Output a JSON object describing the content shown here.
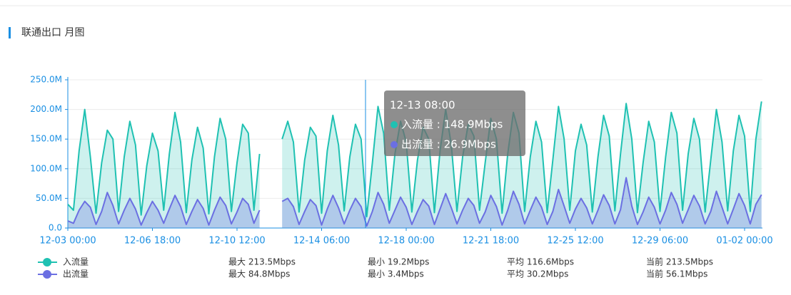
{
  "chart_data": {
    "type": "area",
    "title": "联通出口 月图",
    "categories": [
      "12-03 00:00",
      null,
      null,
      null,
      null,
      null,
      null,
      null,
      null,
      null,
      null,
      null,
      null,
      null,
      null,
      "12-06 18:00",
      null,
      null,
      null,
      null,
      null,
      null,
      null,
      null,
      null,
      null,
      null,
      null,
      null,
      null,
      "12-10 12:00",
      null,
      null,
      null,
      null,
      null,
      null,
      null,
      null,
      null,
      null,
      null,
      null,
      null,
      null,
      "12-14 06:00",
      null,
      null,
      null,
      null,
      null,
      null,
      null,
      null,
      null,
      null,
      null,
      null,
      null,
      null,
      "12-18 00:00",
      null,
      null,
      null,
      null,
      null,
      null,
      null,
      null,
      null,
      null,
      null,
      null,
      null,
      null,
      "12-21 18:00",
      null,
      null,
      null,
      null,
      null,
      null,
      null,
      null,
      null,
      null,
      null,
      null,
      null,
      null,
      "12-25 12:00",
      null,
      null,
      null,
      null,
      null,
      null,
      null,
      null,
      null,
      null,
      null,
      null,
      null,
      null,
      "12-29 06:00",
      null,
      null,
      null,
      null,
      null,
      null,
      null,
      null,
      null,
      null,
      null,
      null,
      null,
      null,
      "01-02 00:00",
      null,
      null,
      null
    ],
    "series": [
      {
        "name": "入流量",
        "color": "#1fc1b2",
        "fill": "rgba(31,193,178,0.22)",
        "stats": [
          "最大 213.5Mbps",
          "最小 19.2Mbps",
          "平均 116.6Mbps",
          "当前 213.5Mbps"
        ],
        "values": [
          40,
          30,
          130,
          200,
          120,
          25,
          110,
          165,
          150,
          28,
          120,
          180,
          140,
          22,
          105,
          160,
          130,
          30,
          125,
          195,
          145,
          26,
          115,
          170,
          135,
          24,
          120,
          185,
          150,
          28,
          110,
          175,
          160,
          30,
          125,
          null,
          null,
          null,
          150,
          180,
          145,
          27,
          115,
          170,
          155,
          25,
          130,
          190,
          140,
          29,
          120,
          175,
          150,
          19.2,
          110,
          205,
          160,
          30,
          125,
          180,
          145,
          27,
          115,
          170,
          150,
          26,
          130,
          200,
          140,
          28,
          120,
          175,
          155,
          30,
          110,
          185,
          150,
          25,
          125,
          195,
          160,
          28,
          120,
          180,
          145,
          26,
          115,
          205,
          150,
          30,
          130,
          175,
          140,
          27,
          120,
          190,
          155,
          29,
          125,
          210,
          150,
          26,
          110,
          180,
          145,
          28,
          120,
          195,
          160,
          30,
          125,
          185,
          150,
          27,
          115,
          200,
          145,
          29,
          130,
          190,
          155,
          28,
          150,
          213.5
        ]
      },
      {
        "name": "出流量",
        "color": "#6b6fe2",
        "fill": "rgba(107,111,226,0.3)",
        "stats": [
          "最大 84.8Mbps",
          "最小 3.4Mbps",
          "平均 30.2Mbps",
          "当前 56.1Mbps"
        ],
        "values": [
          12,
          8,
          30,
          45,
          35,
          6,
          28,
          60,
          38,
          7,
          30,
          50,
          32,
          5,
          26,
          45,
          30,
          8,
          32,
          55,
          36,
          6,
          28,
          48,
          33,
          5,
          30,
          52,
          38,
          7,
          27,
          50,
          40,
          8,
          30,
          null,
          null,
          null,
          45,
          50,
          36,
          6,
          28,
          48,
          38,
          5,
          32,
          55,
          34,
          7,
          30,
          50,
          36,
          3.4,
          28,
          60,
          40,
          8,
          30,
          52,
          35,
          6,
          28,
          48,
          37,
          6,
          32,
          58,
          34,
          7,
          30,
          50,
          38,
          8,
          27,
          55,
          36,
          5,
          30,
          62,
          40,
          7,
          30,
          52,
          35,
          6,
          28,
          65,
          37,
          8,
          32,
          50,
          34,
          7,
          30,
          56,
          38,
          7,
          31,
          84.8,
          37,
          6,
          27,
          52,
          35,
          7,
          30,
          60,
          40,
          8,
          31,
          55,
          37,
          7,
          28,
          62,
          35,
          7,
          32,
          58,
          38,
          7,
          40,
          56.1
        ]
      }
    ],
    "ylim": [
      0,
      250
    ],
    "yticks": [
      {
        "value": 0,
        "label": "0.0"
      },
      {
        "value": 50,
        "label": "50.0M"
      },
      {
        "value": 100,
        "label": "100.0M"
      },
      {
        "value": 150,
        "label": "150.0M"
      },
      {
        "value": 200,
        "label": "200.0M"
      },
      {
        "value": 250,
        "label": "250.0M"
      }
    ],
    "grid": true,
    "tooltip": {
      "title": "12-13 08:00",
      "items": [
        "入流量 : 148.9Mbps",
        "出流量 : 26.9Mbps"
      ]
    }
  }
}
